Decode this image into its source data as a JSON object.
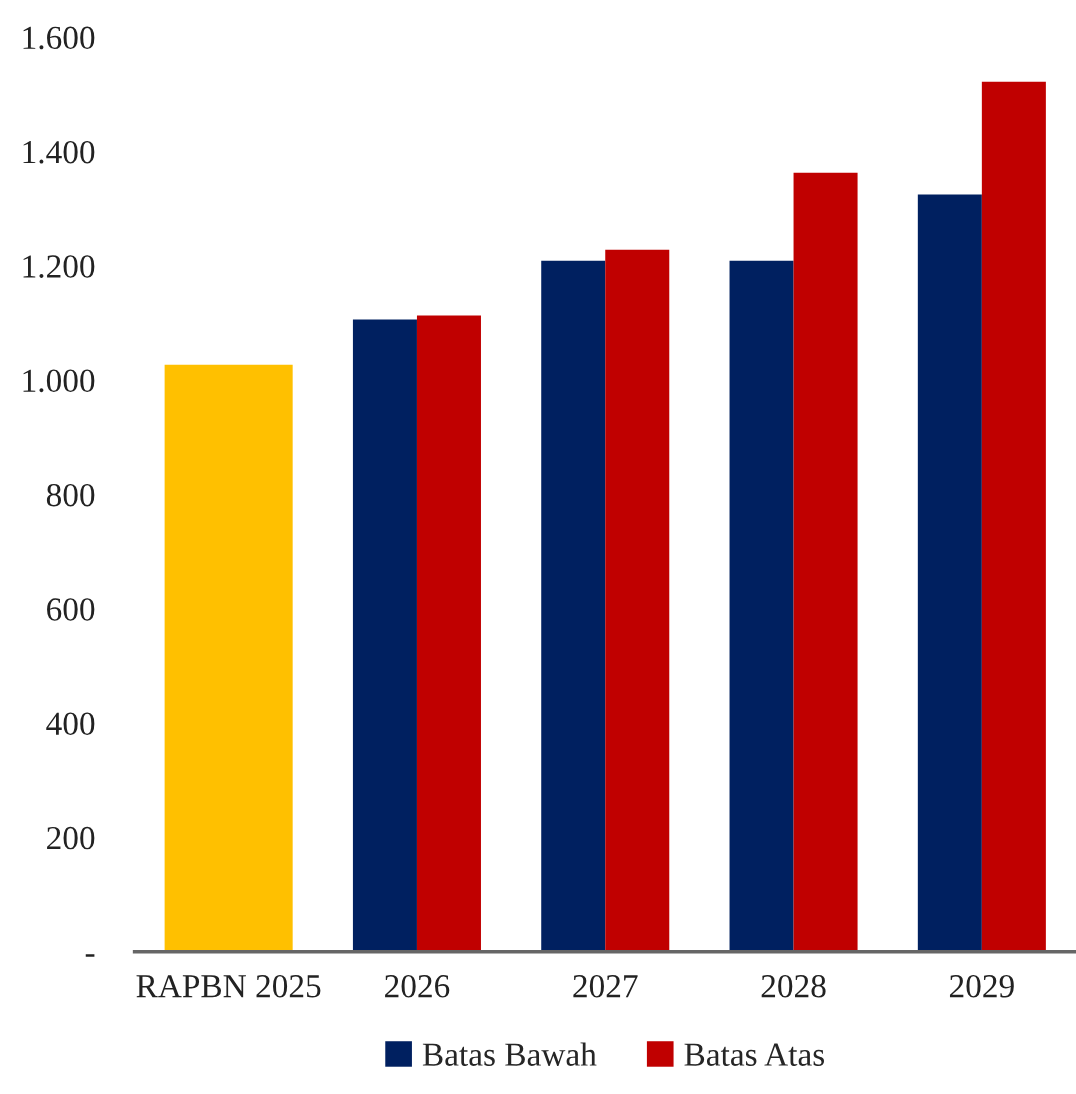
{
  "chart_data": {
    "type": "bar",
    "categories": [
      "RAPBN 2025",
      "2026",
      "2027",
      "2028",
      "2029"
    ],
    "series": [
      {
        "name": "Batas Bawah",
        "color": "#002060",
        "values": [
          null,
          1106,
          1209,
          1209,
          1325
        ]
      },
      {
        "name": "Batas Atas",
        "color": "#c00000",
        "values": [
          null,
          1113,
          1228,
          1363,
          1522
        ]
      },
      {
        "color": "#ffc000",
        "values": [
          1027,
          null,
          null,
          null,
          null
        ]
      }
    ],
    "ylim": [
      0,
      1600
    ],
    "yticks": [
      {
        "value": 0,
        "label": "-"
      },
      {
        "value": 200,
        "label": "200"
      },
      {
        "value": 400,
        "label": "400"
      },
      {
        "value": 600,
        "label": "600"
      },
      {
        "value": 800,
        "label": "800"
      },
      {
        "value": 1000,
        "label": "1.000"
      },
      {
        "value": 1200,
        "label": "1.200"
      },
      {
        "value": 1400,
        "label": "1.400"
      },
      {
        "value": 1600,
        "label": "1.600"
      }
    ],
    "grid": false,
    "legend": "bottom"
  }
}
